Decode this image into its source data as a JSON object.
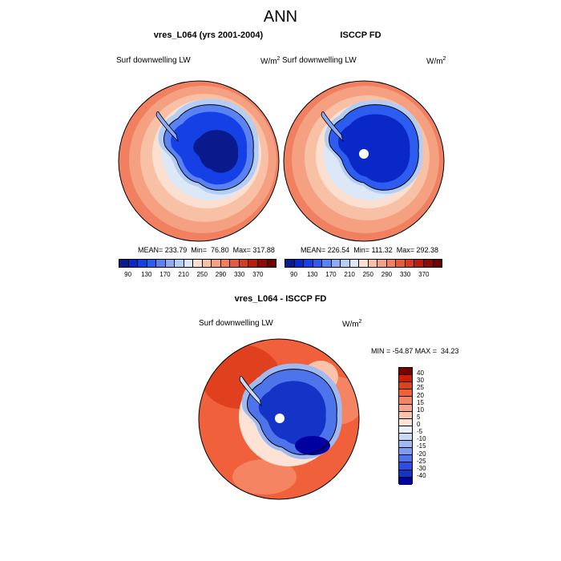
{
  "title": "ANN",
  "chart_data": [
    {
      "type": "heatmap",
      "title": "vres_L064 (yrs 2001-2004)",
      "variable": "Surf downwelling LW",
      "units": "W/m",
      "units_exp": "2",
      "stats": "MEAN= 233.79  Min=  76.80  Max= 317.88",
      "mean": 233.79,
      "min": 76.8,
      "max": 317.88,
      "center_missing": false,
      "cyclone": "deep"
    },
    {
      "type": "heatmap",
      "title": "ISCCP FD",
      "variable": "Surf downwelling LW",
      "units": "W/m",
      "units_exp": "2",
      "stats": "MEAN= 226.54  Min= 111.32  Max= 292.38",
      "mean": 226.54,
      "min": 111.32,
      "max": 292.38,
      "center_missing": true
    },
    {
      "type": "heatmap",
      "title": "vres_L064 - ISCCP FD",
      "variable": "Surf downwelling LW",
      "units": "W/m",
      "units_exp": "2",
      "stats": "MIN = -54.87 MAX =  34.23",
      "min": -54.87,
      "max": 34.23,
      "center_missing": true
    }
  ],
  "colorbar_abs": {
    "labels": [
      "90",
      "130",
      "170",
      "210",
      "250",
      "290",
      "330",
      "370"
    ],
    "colors": [
      "#0a1a8c",
      "#0a28c8",
      "#1440e6",
      "#2d5cf0",
      "#5a82f5",
      "#8caaf5",
      "#b4cdf5",
      "#dce8f8",
      "#fbe0d2",
      "#f8c0a4",
      "#f5a080",
      "#f08060",
      "#e85a3c",
      "#d83a20",
      "#b81e10",
      "#900a05",
      "#6e0000"
    ]
  },
  "colorbar_diff": {
    "labels": [
      "40",
      "30",
      "25",
      "20",
      "15",
      "10",
      "5",
      "0",
      "-5",
      "-10",
      "-15",
      "-20",
      "-25",
      "-30",
      "-40"
    ],
    "colors": [
      "#7a0000",
      "#c81e0a",
      "#e0401e",
      "#f0603a",
      "#f58462",
      "#f8a488",
      "#fbc4aa",
      "#fde3d5",
      "#eaf0fa",
      "#c8d8f5",
      "#9fbaf2",
      "#7c9cf0",
      "#4d74ea",
      "#2a4ee0",
      "#1434c8",
      "#0000a0"
    ]
  }
}
